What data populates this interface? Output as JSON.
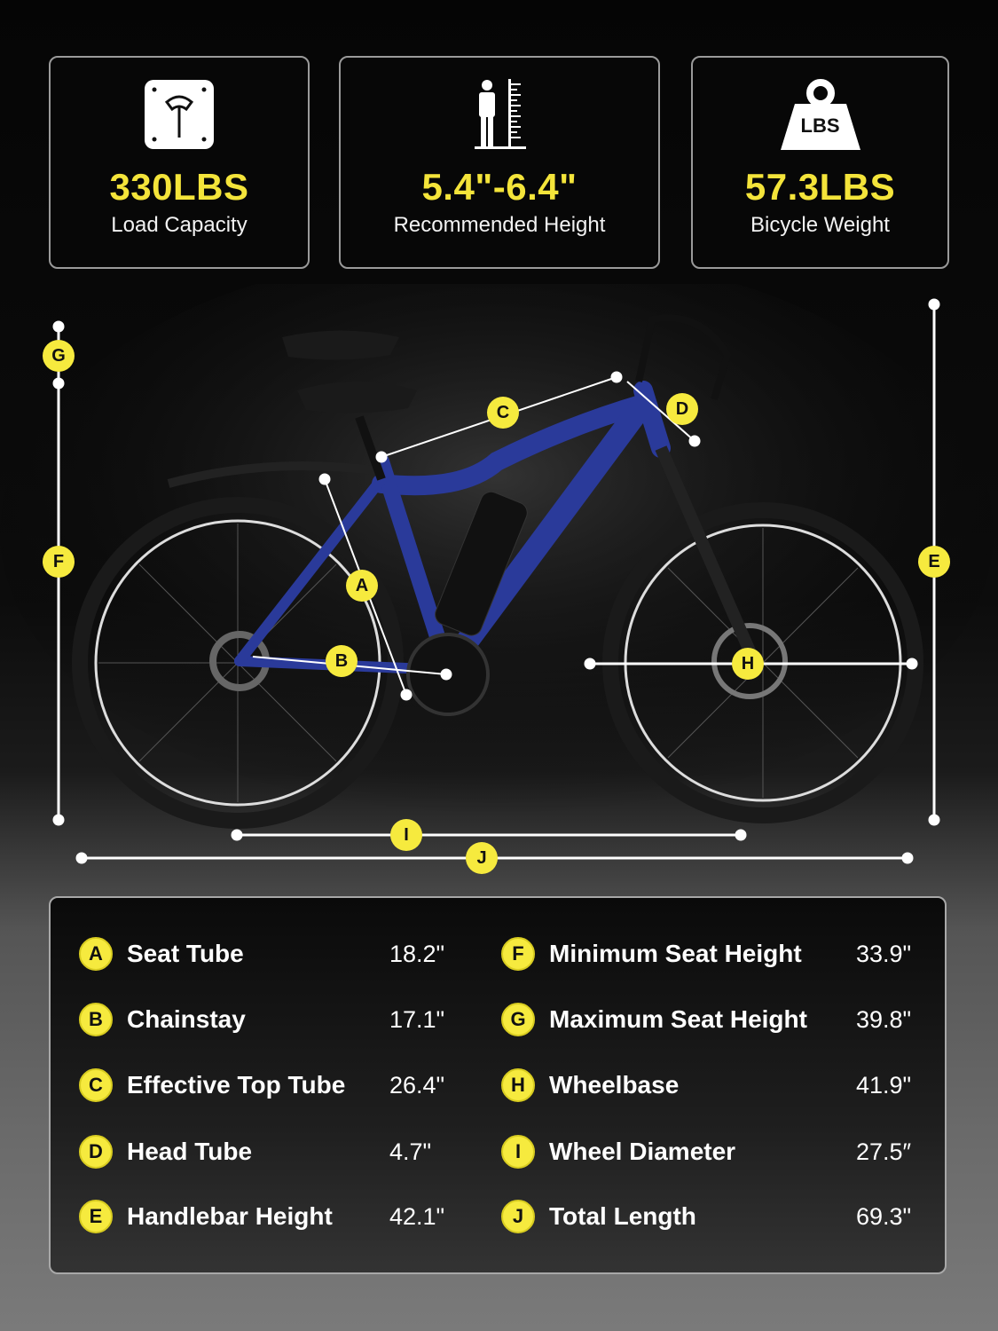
{
  "highlights": [
    {
      "value": "330LBS",
      "label": "Load Capacity",
      "icon": "scale-icon"
    },
    {
      "value": "5.4\"-6.4\"",
      "label": "Recommended Height",
      "icon": "height-ruler-icon"
    },
    {
      "value": "57.3LBS",
      "label": "Bicycle Weight",
      "icon": "weight-icon",
      "icon_text": "LBS"
    }
  ],
  "markers": [
    "A",
    "B",
    "C",
    "D",
    "E",
    "F",
    "G",
    "H",
    "I",
    "J"
  ],
  "specs": {
    "left": [
      {
        "letter": "A",
        "label": "Seat Tube",
        "value": "18.2\""
      },
      {
        "letter": "B",
        "label": "Chainstay",
        "value": "17.1\""
      },
      {
        "letter": "C",
        "label": "Effective Top Tube",
        "value": "26.4\""
      },
      {
        "letter": "D",
        "label": "Head Tube",
        "value": "4.7\""
      },
      {
        "letter": "E",
        "label": "Handlebar Height",
        "value": "42.1\""
      }
    ],
    "right": [
      {
        "letter": "F",
        "label": "Minimum Seat Height",
        "value": "33.9\""
      },
      {
        "letter": "G",
        "label": "Maximum Seat Height",
        "value": "39.8\""
      },
      {
        "letter": "H",
        "label": "Wheelbase",
        "value": "41.9\""
      },
      {
        "letter": "I",
        "label": "Wheel Diameter",
        "value": "27.5″"
      },
      {
        "letter": "J",
        "label": "Total Length",
        "value": "69.3\""
      }
    ]
  },
  "colors": {
    "accent": "#f6ea3e",
    "frame": "#2a3a9a",
    "background": "#050505"
  }
}
